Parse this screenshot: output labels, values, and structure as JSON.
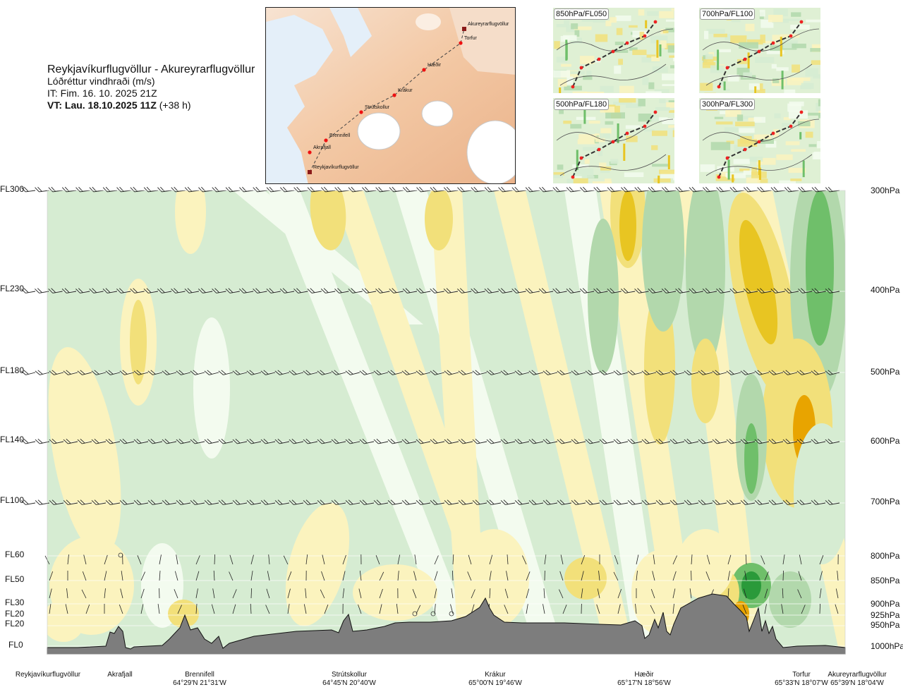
{
  "header": {
    "route": "Reykjavíkurflugvöllur - Akureyrarflugvöllur",
    "product": "Lóðréttur vindhraði (m/s)",
    "issue_time": "IT: Fim. 16. 10. 2025 21Z",
    "valid_time": "VT: Lau. 18.10.2025 11Z",
    "lead_time": "(+38 h)"
  },
  "map": {
    "points": [
      "Akureyrarflugvöllur",
      "Torfur",
      "Hæðir",
      "Krákur",
      "Strútskollur",
      "Brennifell",
      "Akrafjall",
      "Reykjavíkurflugvöllur"
    ]
  },
  "thumbnails": [
    "850hPa/FL050",
    "700hPa/FL100",
    "500hPa/FL180",
    "300hPa/FL300"
  ],
  "colors": {
    "neutral": "#f3fbef",
    "weak_down": "#d6ecd2",
    "down": "#b2d8ac",
    "strong_down": "#6fbf6a",
    "very_strong_down": "#2a9a3a",
    "weak_up": "#fbf3be",
    "up": "#f2e07a",
    "strong_up": "#e8c522",
    "very_strong_up": "#e8a400",
    "terrain": "#7d7d7d"
  },
  "chart_data": {
    "type": "heatmap",
    "title": "Reykjavíkurflugvöllur - Akureyrarflugvöllur",
    "variable": "Lóðréttur vindhraði (m/s)",
    "left_axis_labels": [
      "FL300",
      "FL230",
      "FL180",
      "FL140",
      "FL100",
      "FL60",
      "FL50",
      "FL30",
      "FL20",
      "FL20",
      "FL0"
    ],
    "right_axis_labels": [
      "300hPa",
      "400hPa",
      "500hPa",
      "600hPa",
      "700hPa",
      "800hPa",
      "850hPa",
      "900hPa",
      "925hPa",
      "950hPa",
      "1000hPa"
    ],
    "pressure_levels_hpa": [
      300,
      400,
      500,
      600,
      700,
      800,
      850,
      900,
      925,
      950,
      1000
    ],
    "locations": [
      {
        "name": "Reykjavíkurflugvöllur",
        "coord": ""
      },
      {
        "name": "Akrafjall",
        "coord": ""
      },
      {
        "name": "Brennifell",
        "coord": "64°29'N 21°31'W"
      },
      {
        "name": "Strútskollur",
        "coord": "64°45'N 20°40'W"
      },
      {
        "name": "Krákur",
        "coord": "65°00'N 19°46'W"
      },
      {
        "name": "Hæðir",
        "coord": "65°17'N 18°56'W"
      },
      {
        "name": "Torfur",
        "coord": "65°33'N 18°07'W"
      },
      {
        "name": "Akureyrarflugvöllur",
        "coord": "65°39'N 18°04'W"
      }
    ],
    "grid": true
  }
}
